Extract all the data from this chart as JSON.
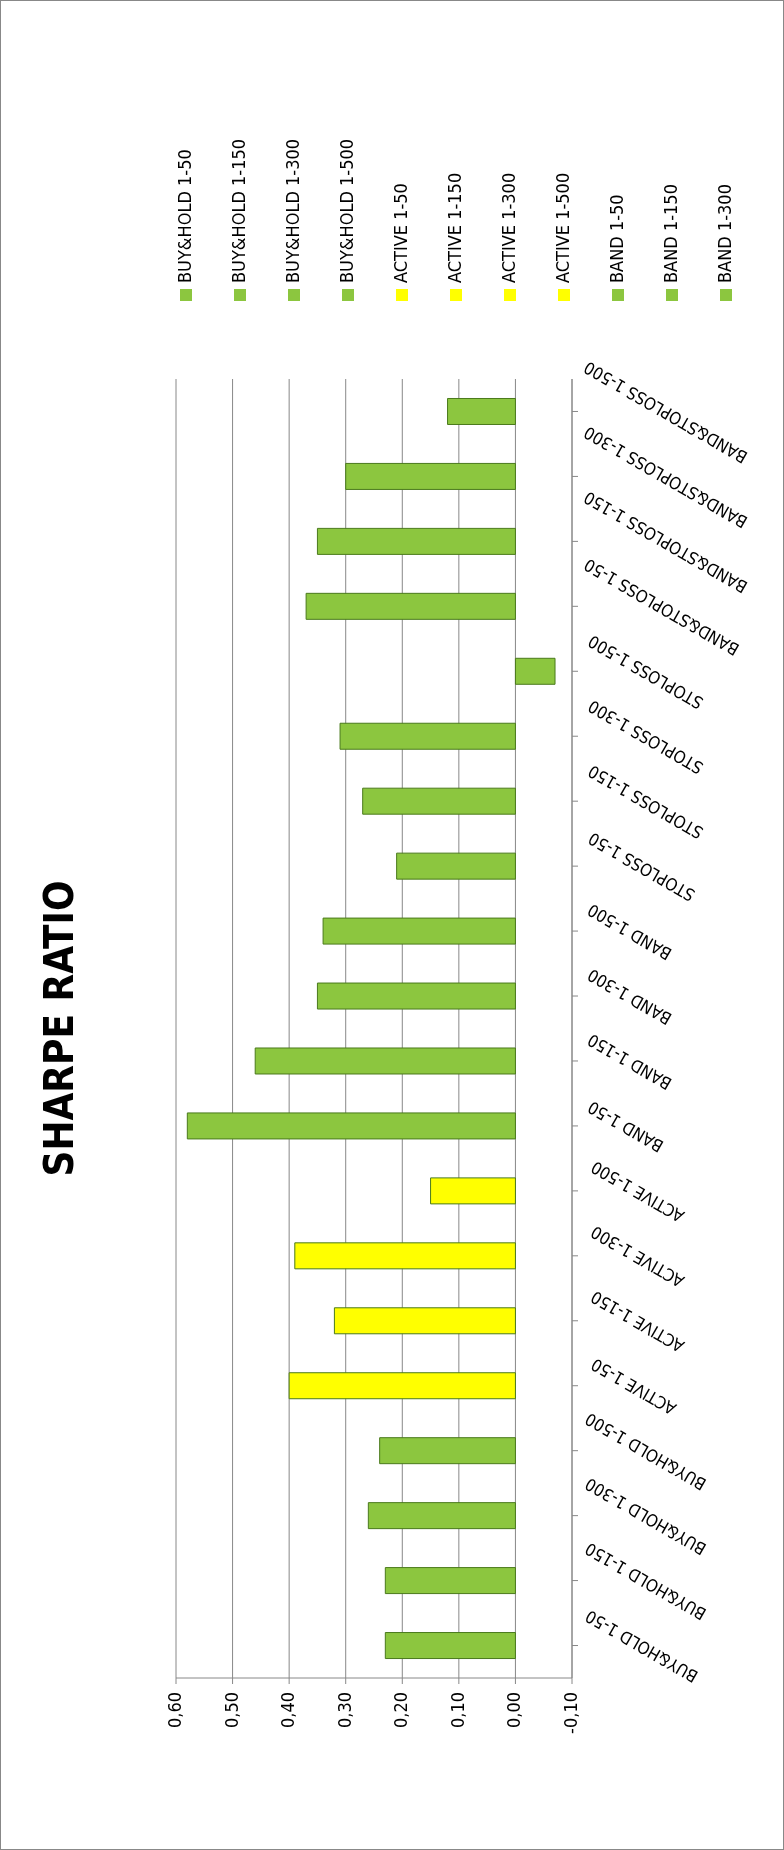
{
  "chart_data": {
    "type": "bar",
    "title": "SHARPE RATIO",
    "orientation": "horizontal",
    "categories": [
      "BAND&STOPLOSS 1-500",
      "BAND&STOPLOSS 1-300",
      "BAND&STOPLOSS 1-150",
      "BAND&STOPLOSS 1-50",
      "STOPLOSS 1-500",
      "STOPLOSS 1-300",
      "STOPLOSS 1-150",
      "STOPLOSS 1-50",
      "BAND 1-500",
      "BAND 1-300",
      "BAND 1-150",
      "BAND 1-50",
      "ACTIVE 1-500",
      "ACTIVE 1-300",
      "ACTIVE 1-150",
      "ACTIVE 1-50",
      "BUY&HOLD 1-500",
      "BUY&HOLD 1-300",
      "BUY&HOLD 1-150",
      "BUY&HOLD 1-50"
    ],
    "values": [
      0.12,
      0.3,
      0.35,
      0.37,
      -0.07,
      0.31,
      0.27,
      0.21,
      0.34,
      0.35,
      0.46,
      0.58,
      0.15,
      0.39,
      0.32,
      0.4,
      0.24,
      0.26,
      0.23,
      0.23
    ],
    "colors": [
      "#8cc63f",
      "#8cc63f",
      "#8cc63f",
      "#8cc63f",
      "#8cc63f",
      "#8cc63f",
      "#8cc63f",
      "#8cc63f",
      "#8cc63f",
      "#8cc63f",
      "#8cc63f",
      "#8cc63f",
      "#ffff00",
      "#ffff00",
      "#ffff00",
      "#ffff00",
      "#8cc63f",
      "#8cc63f",
      "#8cc63f",
      "#8cc63f"
    ],
    "xlim": [
      0.6,
      -0.1
    ],
    "xticks": [
      {
        "value": 0.6,
        "label": "0,60"
      },
      {
        "value": 0.5,
        "label": "0,50"
      },
      {
        "value": 0.4,
        "label": "0,40"
      },
      {
        "value": 0.3,
        "label": "0,30"
      },
      {
        "value": 0.2,
        "label": "0,20"
      },
      {
        "value": 0.1,
        "label": "0,10"
      },
      {
        "value": 0,
        "label": "0,00"
      },
      {
        "value": -0.1,
        "label": "-0,10"
      }
    ],
    "grid": "x"
  }
}
